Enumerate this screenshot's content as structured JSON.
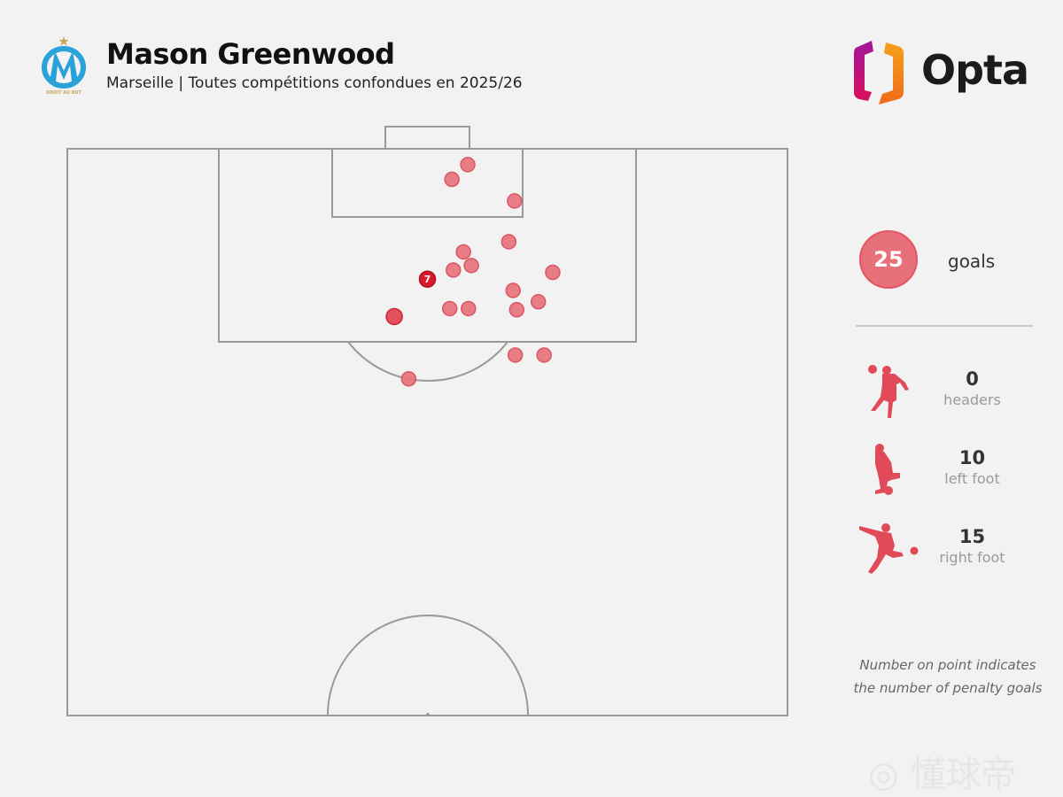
{
  "header": {
    "title": "Mason Greenwood",
    "subtitle": "Marseille | Toutes compétitions confondues en 2025/26",
    "club_crest_text": "DROIT AU BUT",
    "brand_logo": "Opta"
  },
  "summary": {
    "total": "25",
    "total_label": "goals",
    "breakdown": [
      {
        "icon": "header-silhouette-icon",
        "value": "0",
        "label": "headers"
      },
      {
        "icon": "left-foot-silhouette-icon",
        "value": "10",
        "label": "left foot"
      },
      {
        "icon": "right-foot-silhouette-icon",
        "value": "15",
        "label": "right foot"
      }
    ]
  },
  "note": {
    "line1": "Number on point indicates",
    "line2": "the number of penalty goals"
  },
  "watermark": "懂球帝",
  "colors": {
    "background": "#f2f2f2",
    "goal_marker": "#e8707a",
    "penalty_marker": "#d7192b",
    "pitch_lines": "#999999"
  },
  "chart_data": {
    "type": "scatter",
    "title": "Mason Greenwood",
    "coordinate_system": "Opta pitch (x 0-100 length toward goal, y 0-100 width)",
    "xlim": [
      50,
      100
    ],
    "ylim": [
      0,
      100
    ],
    "points": [
      {
        "x": 98.6,
        "y": 55.6,
        "goals": 1
      },
      {
        "x": 97.3,
        "y": 53.4,
        "goals": 1
      },
      {
        "x": 95.4,
        "y": 62.1,
        "goals": 1
      },
      {
        "x": 91.8,
        "y": 61.3,
        "goals": 1
      },
      {
        "x": 90.9,
        "y": 55.0,
        "goals": 1
      },
      {
        "x": 89.7,
        "y": 56.1,
        "goals": 1
      },
      {
        "x": 89.3,
        "y": 53.6,
        "goals": 1
      },
      {
        "x": 89.1,
        "y": 67.4,
        "goals": 1
      },
      {
        "x": 88.5,
        "y": 50.0,
        "goals": 7,
        "penalty": true,
        "label": "7"
      },
      {
        "x": 87.5,
        "y": 61.9,
        "goals": 1
      },
      {
        "x": 86.5,
        "y": 65.4,
        "goals": 1
      },
      {
        "x": 85.9,
        "y": 53.1,
        "goals": 1
      },
      {
        "x": 85.9,
        "y": 55.7,
        "goals": 1
      },
      {
        "x": 85.8,
        "y": 62.4,
        "goals": 1
      },
      {
        "x": 85.2,
        "y": 45.4,
        "goals": 2
      },
      {
        "x": 81.8,
        "y": 62.2,
        "goals": 1
      },
      {
        "x": 81.8,
        "y": 66.2,
        "goals": 1
      },
      {
        "x": 79.7,
        "y": 47.4,
        "goals": 1
      }
    ]
  }
}
